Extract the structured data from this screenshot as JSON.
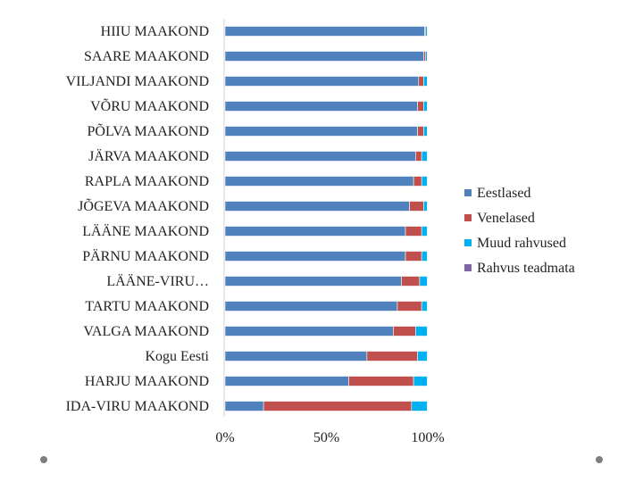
{
  "chart_data": {
    "type": "bar",
    "orientation": "horizontal",
    "stacked": "percent",
    "categories": [
      "HIIU MAAKOND",
      "SAARE MAAKOND",
      "VILJANDI MAAKOND",
      "VÕRU MAAKOND",
      "PÕLVA MAAKOND",
      "JÄRVA MAAKOND",
      "RAPLA MAAKOND",
      "JÕGEVA MAAKOND",
      "LÄÄNE MAAKOND",
      "PÄRNU MAAKOND",
      "LÄÄNE-VIRU…",
      "TARTU MAAKOND",
      "VALGA MAAKOND",
      "Kogu Eesti",
      "HARJU MAAKOND",
      "IDA-VIRU MAAKOND"
    ],
    "series": [
      {
        "name": "Eestlased",
        "color": "#4f81bd",
        "values": [
          98.5,
          98,
          95.5,
          95,
          95,
          94,
          93,
          91,
          89,
          89,
          87,
          85,
          83,
          70,
          61,
          19
        ]
      },
      {
        "name": "Venelased",
        "color": "#c0504d",
        "values": [
          0.5,
          1,
          2.5,
          3,
          3,
          3,
          4,
          7,
          8,
          8,
          9,
          12,
          11,
          25,
          32,
          73
        ]
      },
      {
        "name": "Muud rahvused",
        "color": "#00b0f0",
        "values": [
          0.8,
          0.8,
          1.8,
          1.8,
          1.8,
          2.8,
          2.8,
          1.8,
          2.8,
          2.8,
          3.8,
          2.8,
          5.8,
          4.8,
          6.8,
          7.8
        ]
      },
      {
        "name": "Rahvus teadmata",
        "color": "#8064a2",
        "values": [
          0.2,
          0.2,
          0.2,
          0.2,
          0.2,
          0.2,
          0.2,
          0.2,
          0.2,
          0.2,
          0.2,
          0.2,
          0.2,
          0.2,
          0.2,
          0.2
        ]
      }
    ],
    "xlim": [
      0,
      100
    ],
    "x_ticks": [
      "0%",
      "50%",
      "100%"
    ],
    "grid": false,
    "legend_position": "right"
  }
}
